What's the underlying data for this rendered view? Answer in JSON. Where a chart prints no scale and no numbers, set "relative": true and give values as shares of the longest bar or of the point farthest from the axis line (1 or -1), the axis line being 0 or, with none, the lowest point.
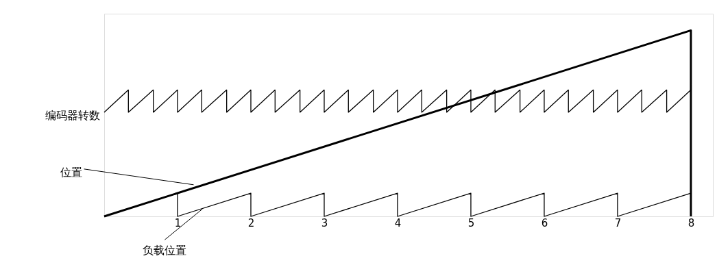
{
  "chart_data": {
    "type": "line",
    "relative": true,
    "xlim": [
      0,
      8.3
    ],
    "xticks": [
      1,
      2,
      3,
      4,
      5,
      6,
      7,
      8
    ],
    "grid": false,
    "marker": "none",
    "line_style": "solid",
    "series": [
      {
        "color": "#000000",
        "x": [
          0,
          8,
          8
        ],
        "values": [
          0,
          1,
          0
        ]
      },
      {
        "color": "#000000",
        "x": [
          0,
          1,
          1,
          2,
          2,
          3,
          3,
          4,
          4,
          5,
          5,
          6,
          6,
          7,
          7,
          8
        ],
        "values": [
          0,
          0.125,
          0,
          0.125,
          0,
          0.125,
          0,
          0.125,
          0,
          0.125,
          0,
          0.125,
          0,
          0.125,
          0,
          0.125
        ]
      },
      {
        "color": "#000000",
        "x": [
          0,
          0.33,
          0.33,
          0.67,
          0.67,
          1,
          1,
          1.33,
          1.33,
          1.67,
          1.67,
          2,
          2,
          2.33,
          2.33,
          2.67,
          2.67,
          3,
          3,
          3.33,
          3.33,
          3.67,
          3.67,
          4,
          4,
          4.33,
          4.33,
          4.67,
          4.67,
          5,
          5,
          5.33,
          5.33,
          5.67,
          5.67,
          6,
          6,
          6.33,
          6.33,
          6.67,
          6.67,
          7,
          7,
          7.33,
          7.33,
          7.67,
          7.67,
          8
        ],
        "values": [
          0.56,
          0.68,
          0.56,
          0.68,
          0.56,
          0.68,
          0.56,
          0.68,
          0.56,
          0.68,
          0.56,
          0.68,
          0.56,
          0.68,
          0.56,
          0.68,
          0.56,
          0.68,
          0.56,
          0.68,
          0.56,
          0.68,
          0.56,
          0.68,
          0.56,
          0.68,
          0.56,
          0.68,
          0.56,
          0.68,
          0.56,
          0.68,
          0.56,
          0.68,
          0.56,
          0.68,
          0.56,
          0.68,
          0.56,
          0.68,
          0.56,
          0.68,
          0.56,
          0.68,
          0.56,
          0.68,
          0.56,
          0.68
        ]
      }
    ],
    "annotations": [
      {
        "text": "编码器转数",
        "x": 0,
        "y": 0.56
      },
      {
        "text": "位置",
        "x": 1.22,
        "y": 0.17
      },
      {
        "text": "负载位置",
        "x": 1.34,
        "y": 0.04
      }
    ]
  }
}
